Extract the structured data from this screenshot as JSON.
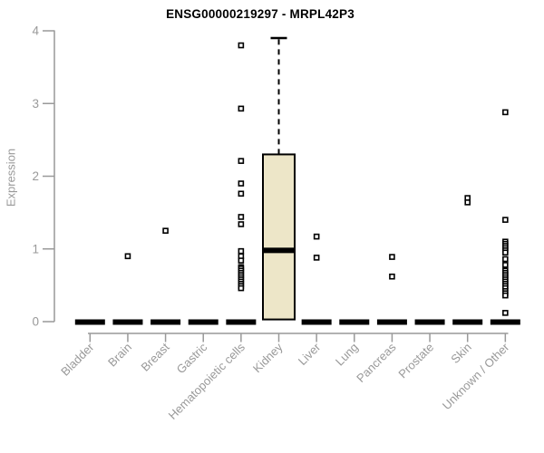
{
  "window": {
    "background": "#ffffff"
  },
  "chart_data": {
    "type": "boxplot",
    "title": "ENSG00000219297 - MRPL42P3",
    "xlabel": "",
    "ylabel": "Expression",
    "ylim": [
      0,
      4
    ],
    "yticks": [
      0,
      1,
      2,
      3,
      4
    ],
    "grid": false,
    "legend": false,
    "categories": [
      "Bladder",
      "Brain",
      "Breast",
      "Gastric",
      "Hematopoietic cells",
      "Kidney",
      "Liver",
      "Lung",
      "Pancreas",
      "Prostate",
      "Skin",
      "Unknown / Other"
    ],
    "boxes": [
      {
        "category": "Bladder",
        "q1": 0,
        "median": 0,
        "q3": 0,
        "whisker_low": 0,
        "whisker_high": 0,
        "outliers": []
      },
      {
        "category": "Brain",
        "q1": 0,
        "median": 0,
        "q3": 0,
        "whisker_low": 0,
        "whisker_high": 0,
        "outliers": [
          0.9
        ]
      },
      {
        "category": "Breast",
        "q1": 0,
        "median": 0,
        "q3": 0,
        "whisker_low": 0,
        "whisker_high": 0,
        "outliers": [
          1.25
        ]
      },
      {
        "category": "Gastric",
        "q1": 0,
        "median": 0,
        "q3": 0,
        "whisker_low": 0,
        "whisker_high": 0,
        "outliers": []
      },
      {
        "category": "Hematopoietic cells",
        "q1": 0,
        "median": 0,
        "q3": 0,
        "whisker_low": 0,
        "whisker_high": 0,
        "outliers": [
          3.8,
          2.93,
          2.21,
          1.9,
          1.76,
          1.44,
          1.34,
          0.97,
          0.9,
          0.84,
          0.75,
          0.73,
          0.7,
          0.67,
          0.64,
          0.61,
          0.58,
          0.55,
          0.52,
          0.49,
          0.46
        ]
      },
      {
        "category": "Kidney",
        "q1": 0.03,
        "median": 0.98,
        "q3": 2.3,
        "whisker_low": 0.03,
        "whisker_high": 3.9,
        "outliers": []
      },
      {
        "category": "Liver",
        "q1": 0,
        "median": 0,
        "q3": 0,
        "whisker_low": 0,
        "whisker_high": 0,
        "outliers": [
          1.17,
          0.88
        ]
      },
      {
        "category": "Lung",
        "q1": 0,
        "median": 0,
        "q3": 0,
        "whisker_low": 0,
        "whisker_high": 0,
        "outliers": []
      },
      {
        "category": "Pancreas",
        "q1": 0,
        "median": 0,
        "q3": 0,
        "whisker_low": 0,
        "whisker_high": 0,
        "outliers": [
          0.89,
          0.62
        ]
      },
      {
        "category": "Prostate",
        "q1": 0,
        "median": 0,
        "q3": 0,
        "whisker_low": 0,
        "whisker_high": 0,
        "outliers": []
      },
      {
        "category": "Skin",
        "q1": 0,
        "median": 0,
        "q3": 0,
        "whisker_low": 0,
        "whisker_high": 0,
        "outliers": [
          1.7,
          1.64
        ]
      },
      {
        "category": "Unknown / Other",
        "q1": 0,
        "median": 0,
        "q3": 0,
        "whisker_low": 0,
        "whisker_high": 0,
        "outliers": [
          2.88,
          1.4,
          1.1,
          1.07,
          1.04,
          1.01,
          0.98,
          0.95,
          0.86,
          0.78,
          0.7,
          0.67,
          0.64,
          0.61,
          0.58,
          0.55,
          0.52,
          0.49,
          0.46,
          0.42,
          0.39,
          0.36,
          0.12
        ]
      }
    ],
    "colors": {
      "box_fill": "#EDE6C8",
      "box_border": "#000000",
      "median": "#000000",
      "zero_bar": "#000000",
      "outlier": "#000000",
      "outlier_fill": "#ffffff",
      "axis": "#999999",
      "tick_label": "#999999",
      "title": "#000000"
    }
  }
}
